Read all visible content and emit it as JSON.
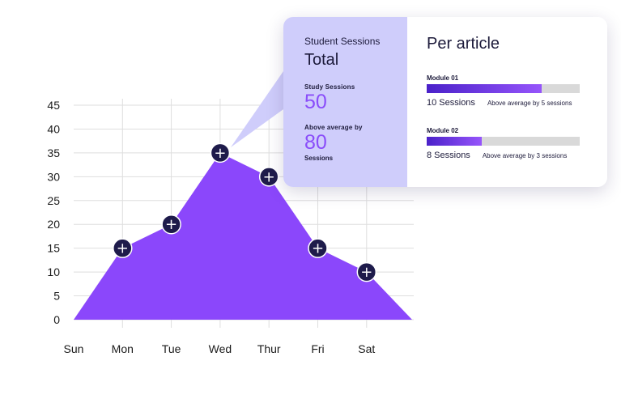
{
  "chart_data": {
    "type": "area",
    "categories": [
      "Sun",
      "Mon",
      "Tue",
      "Wed",
      "Thur",
      "Fri",
      "Sat"
    ],
    "values": [
      0,
      15,
      20,
      35,
      30,
      15,
      10
    ],
    "marked_points": [
      "Mon",
      "Tue",
      "Wed",
      "Thur",
      "Fri",
      "Sat"
    ],
    "yticks": [
      0,
      5,
      10,
      15,
      20,
      25,
      30,
      35,
      40,
      45
    ],
    "ylim": [
      0,
      45
    ],
    "grid": true,
    "fill_color": "#8b47fb",
    "marker_color": "#1e1b4b",
    "marker_symbol": "+"
  },
  "card": {
    "left": {
      "subtitle": "Student Sessions",
      "title": "Total",
      "study_label": "Study Sessions",
      "study_value": "50",
      "above_label": "Above average by",
      "above_value": "80",
      "above_unit": "Sessions"
    },
    "right": {
      "title": "Per article",
      "modules": [
        {
          "name": "Module 01",
          "sessions": "10 Sessions",
          "note": "Above average by 5 sessions",
          "fill": 0.75
        },
        {
          "name": "Module 02",
          "sessions": "8 Sessions",
          "note": "Above average by 3 sessions",
          "fill": 0.36
        }
      ]
    },
    "accent_color": "#8a4dfa",
    "panel_color": "#cfcdfb"
  }
}
